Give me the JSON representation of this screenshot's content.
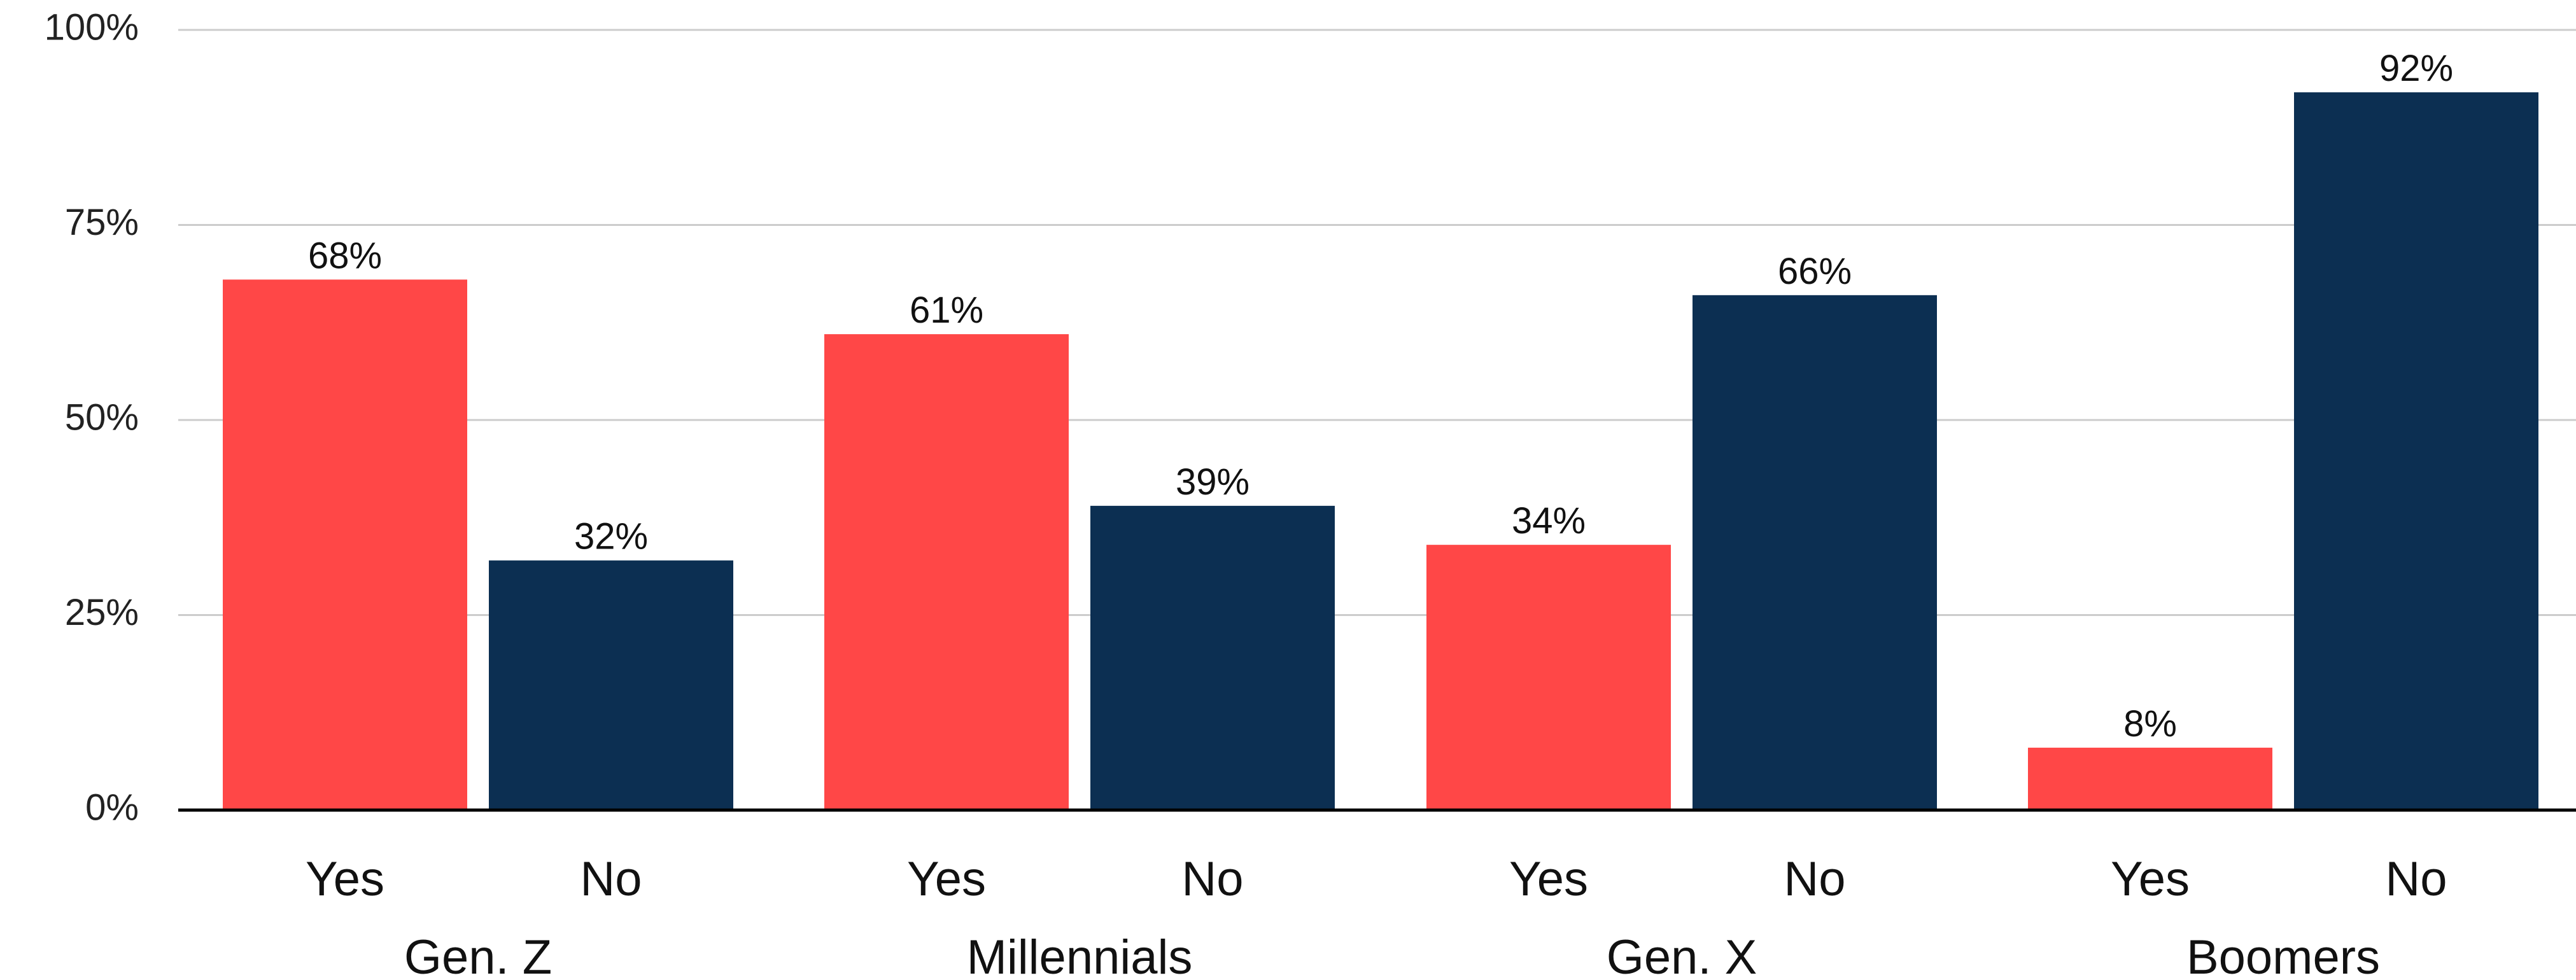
{
  "chart_data": {
    "type": "bar",
    "categories": [
      "Gen. Z",
      "Millennials",
      "Gen. X",
      "Boomers"
    ],
    "series": [
      {
        "name": "Yes",
        "values": [
          68,
          61,
          34,
          8
        ],
        "color": "#FF4747"
      },
      {
        "name": "No",
        "values": [
          32,
          39,
          66,
          92
        ],
        "color": "#0C2F52"
      }
    ],
    "sub_labels": [
      "Yes",
      "No"
    ],
    "data_labels": {
      "Yes": [
        "68%",
        "61%",
        "34%",
        "8%"
      ],
      "No": [
        "32%",
        "39%",
        "66%",
        "92%"
      ]
    },
    "y_ticks": [
      "0%",
      "25%",
      "50%",
      "75%",
      "100%"
    ],
    "y_tick_values": [
      0,
      25,
      50,
      75,
      100
    ],
    "ylim": [
      0,
      100
    ],
    "grid": true,
    "gridline_color": "#CCCCCC",
    "axis_color": "#000000",
    "title": "",
    "xlabel": "",
    "ylabel": ""
  }
}
